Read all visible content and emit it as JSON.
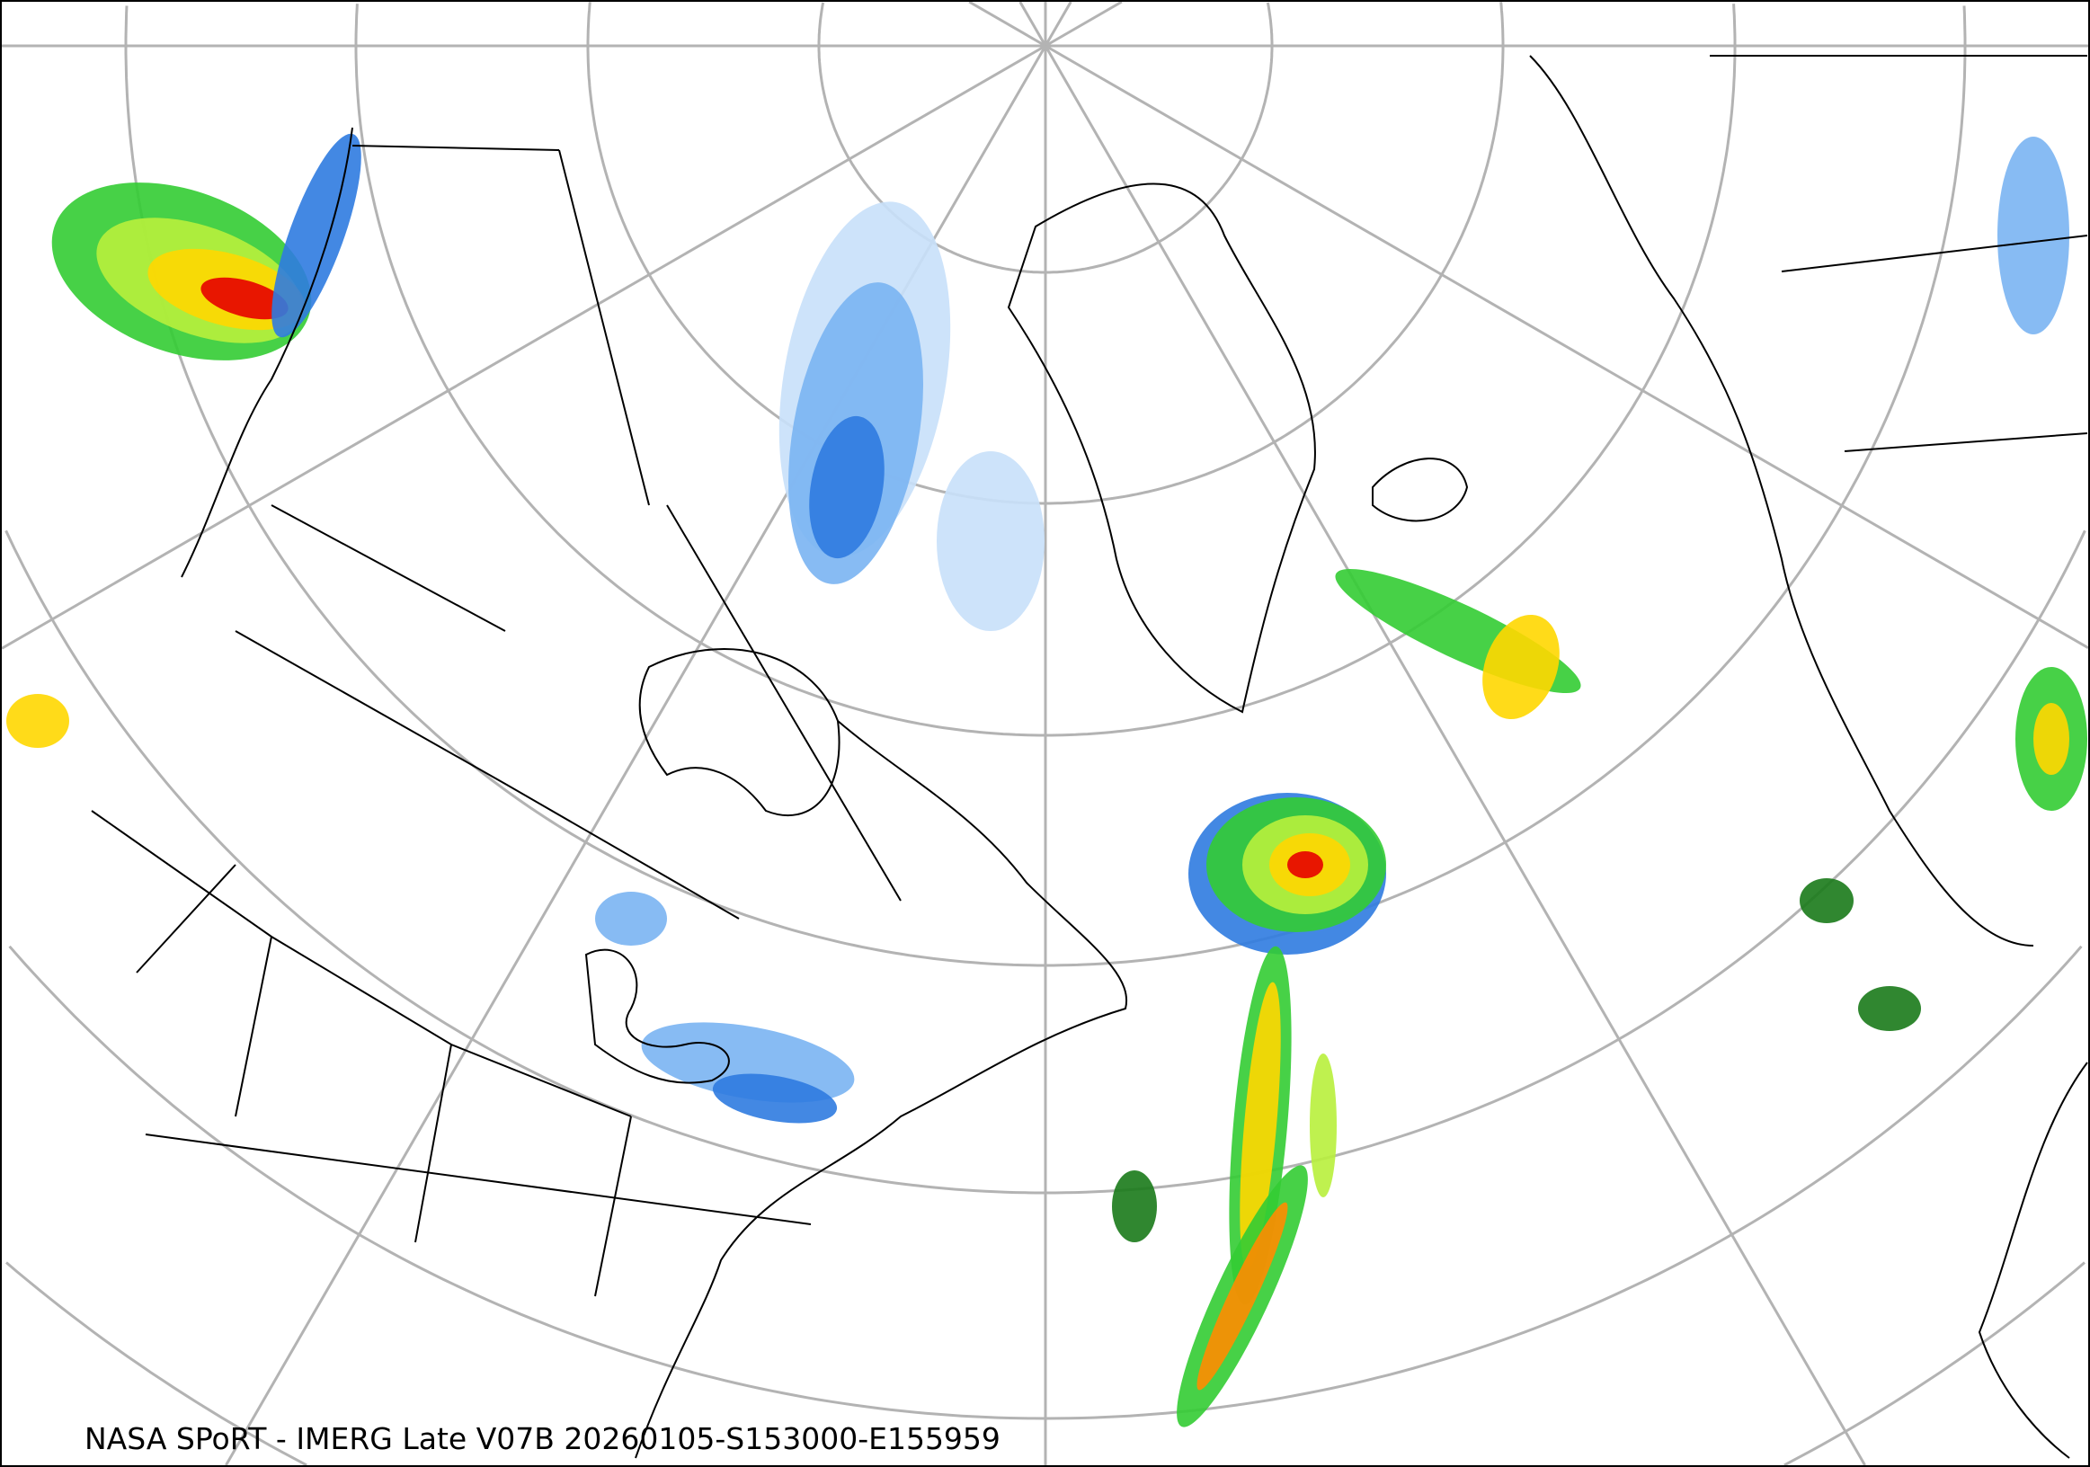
{
  "map": {
    "caption": "NASA SPoRT - IMERG Late V07B 20260105-S153000-E155959",
    "projection": "north-polar-stereographic",
    "graticule_color": "#b3b3b3",
    "coastline_color": "#000000",
    "precip_colors": {
      "snow_light": "#c8e0fa",
      "snow_medium": "#7ab4f2",
      "snow_heavy": "#2f7be0",
      "rain_very_light": "#1a7a1a",
      "rain_light": "#33cc33",
      "rain_moderate": "#b8f03c",
      "rain_heavy": "#ffd700",
      "rain_very_heavy": "#ff8c00",
      "rain_extreme": "#e60000",
      "mixed": "#e040e0"
    }
  }
}
